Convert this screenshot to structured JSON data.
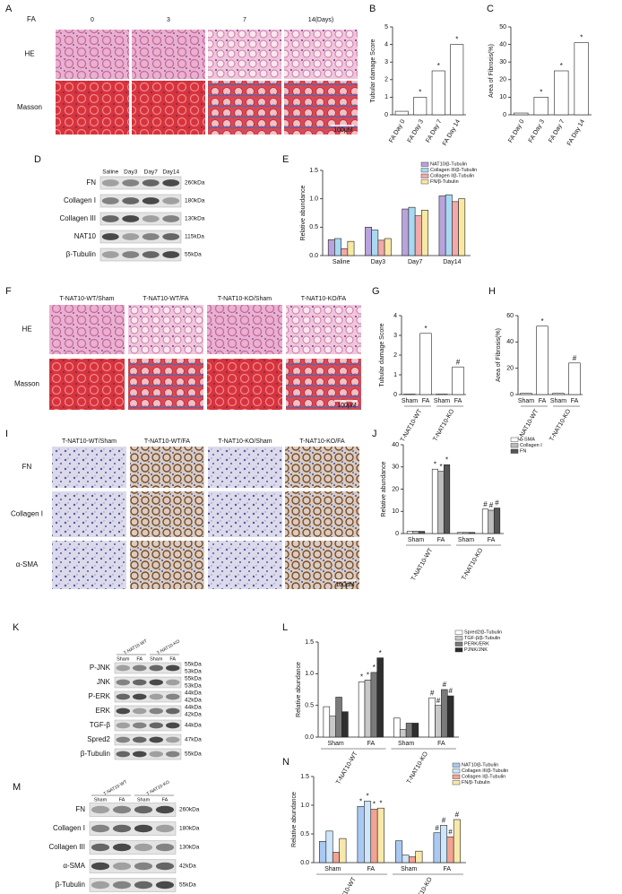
{
  "figure": {
    "panels": [
      "A",
      "B",
      "C",
      "D",
      "E",
      "F",
      "G",
      "H",
      "I",
      "J",
      "K",
      "L",
      "M",
      "N"
    ],
    "panel_A": {
      "group_label": "FA",
      "columns": [
        "0",
        "3",
        "7",
        "14(Days)"
      ],
      "rows": [
        "HE",
        "Masson"
      ],
      "scale": "100μM"
    },
    "panel_D": {
      "lanes": [
        "Saline",
        "Day3",
        "Day7",
        "Day14"
      ],
      "rows": [
        {
          "name": "FN",
          "sizes": [
            "260kDa"
          ]
        },
        {
          "name": "Collagen I",
          "sizes": [
            "180kDa"
          ]
        },
        {
          "name": "Collagen III",
          "sizes": [
            "130kDa"
          ]
        },
        {
          "name": "NAT10",
          "sizes": [
            "115kDa"
          ]
        },
        {
          "name": "β-Tubulin",
          "sizes": [
            "55kDa"
          ]
        }
      ]
    },
    "panel_F": {
      "columns": [
        "T-NAT10-WT/Sham",
        "T-NAT10-WT/FA",
        "T-NAT10-KO/Sham",
        "T-NAT10-KO/FA"
      ],
      "rows": [
        "HE",
        "Masson"
      ],
      "scale": "100μM"
    },
    "panel_I": {
      "columns": [
        "T-NAT10-WT/Sham",
        "T-NAT10-WT/FA",
        "T-NAT10-KO/Sham",
        "T-NAT10-KO/FA"
      ],
      "rows": [
        "FN",
        "Collagen I",
        "α-SMA"
      ],
      "scale": "100μM"
    },
    "panel_K": {
      "groups": [
        "T-NAT10-WT",
        "T-NAT10-KO"
      ],
      "lanes": [
        "Sham",
        "FA",
        "Sham",
        "FA"
      ],
      "rows": [
        {
          "name": "P-JNK",
          "sizes": [
            "55kDa",
            "53kDa"
          ]
        },
        {
          "name": "JNK",
          "sizes": [
            "55kDa",
            "53kDa"
          ]
        },
        {
          "name": "P-ERK",
          "sizes": [
            "44kDa",
            "42kDa"
          ]
        },
        {
          "name": "ERK",
          "sizes": [
            "44kDa",
            "42kDa"
          ]
        },
        {
          "name": "TGF-β",
          "sizes": [
            "44kDa"
          ]
        },
        {
          "name": "Spred2",
          "sizes": [
            "47kDa"
          ]
        },
        {
          "name": "β-Tubulin",
          "sizes": [
            "55kDa"
          ]
        }
      ]
    },
    "panel_M": {
      "groups": [
        "T-NAT10-WT",
        "T-NAT10-KO"
      ],
      "lanes": [
        "Sham",
        "FA",
        "Sham",
        "FA"
      ],
      "rows": [
        {
          "name": "FN",
          "sizes": [
            "260kDa"
          ]
        },
        {
          "name": "Collagen I",
          "sizes": [
            "180kDa"
          ]
        },
        {
          "name": "Collagen III",
          "sizes": [
            "130kDa"
          ]
        },
        {
          "name": "α-SMA",
          "sizes": [
            "42kDa"
          ]
        },
        {
          "name": "β-Tubulin",
          "sizes": [
            "55kDa"
          ]
        }
      ]
    }
  },
  "chart_data": [
    {
      "type": "bar",
      "ylabel": "Tubular damage Score",
      "categories": [
        "FA Day 0",
        "FA Day 3",
        "FA Day 7",
        "FA Day 14"
      ],
      "values": [
        0.2,
        1.0,
        2.5,
        4.0
      ],
      "annotations": [
        null,
        "*",
        "*",
        "*"
      ],
      "color": "#ffffff",
      "ylim": [
        0,
        5
      ],
      "yticks": [
        0,
        1,
        2,
        3,
        4,
        5
      ]
    },
    {
      "type": "bar",
      "ylabel": "Area of Fibrosis(%)",
      "categories": [
        "FA Day 0",
        "FA Day 3",
        "FA Day 7",
        "FA Day 14"
      ],
      "values": [
        1,
        10,
        25,
        41
      ],
      "annotations": [
        null,
        "*",
        "*",
        "*"
      ],
      "color": "#ffffff",
      "ylim": [
        0,
        50
      ],
      "yticks": [
        0,
        10,
        20,
        30,
        40,
        50
      ]
    },
    {
      "type": "bar",
      "ylabel": "Relative abundance",
      "categories": [
        "Saline",
        "Day3",
        "Day7",
        "Day14"
      ],
      "series": [
        {
          "name": "NAT10/β-Tubulin",
          "color": "#b9a3dc",
          "values": [
            0.28,
            0.5,
            0.82,
            1.05
          ]
        },
        {
          "name": "Collagen III/β-Tubulin",
          "color": "#a9d9f2",
          "values": [
            0.3,
            0.45,
            0.85,
            1.07
          ]
        },
        {
          "name": "Collagen I/β-Tubulin",
          "color": "#f2a9a9",
          "values": [
            0.12,
            0.27,
            0.7,
            0.95
          ]
        },
        {
          "name": "FN/β-Tubulin",
          "color": "#f8e8a2",
          "values": [
            0.25,
            0.3,
            0.8,
            1.0
          ]
        }
      ],
      "ylim": [
        0,
        1.5
      ],
      "yticks": [
        {
          "value": 0,
          "label": "0.0"
        },
        {
          "value": 0.5,
          "label": "0.5"
        },
        {
          "value": 1,
          "label": "1.0"
        },
        {
          "value": 1.5,
          "label": "1.5"
        }
      ]
    },
    {
      "type": "bar",
      "ylabel": "Tubular damage Score",
      "categories": [
        "Sham",
        "FA",
        "Sham",
        "FA"
      ],
      "groups": [
        "T-NAT10-WT",
        "T-NAT10-KO"
      ],
      "values": [
        0.02,
        3.1,
        0.02,
        1.4
      ],
      "annotations": [
        null,
        "*",
        null,
        "#"
      ],
      "color": "#ffffff",
      "ylim": [
        0,
        4
      ],
      "yticks": [
        0,
        1,
        2,
        3,
        4
      ]
    },
    {
      "type": "bar",
      "ylabel": "Area of Fibrosis(%)",
      "categories": [
        "Sham",
        "FA",
        "Sham",
        "FA"
      ],
      "groups": [
        "T-NAT10-WT",
        "T-NAT10-KO"
      ],
      "values": [
        1,
        52,
        1,
        24
      ],
      "annotations": [
        null,
        "*",
        null,
        "#"
      ],
      "color": "#ffffff",
      "ylim": [
        0,
        60
      ],
      "yticks": [
        0,
        20,
        40,
        60
      ]
    },
    {
      "type": "bar",
      "ylabel": "Relative abundance",
      "categories": [
        "Sham",
        "FA",
        "Sham",
        "FA"
      ],
      "groups": [
        "T-NAT10-WT",
        "T-NAT10-KO"
      ],
      "series": [
        {
          "name": "α-SMA",
          "color": "#ffffff",
          "values": [
            1,
            29,
            0.5,
            11
          ],
          "annotations": [
            null,
            "*",
            null,
            "#"
          ]
        },
        {
          "name": "Collagen I",
          "color": "#bdbdbd",
          "values": [
            1,
            28,
            0.5,
            10.5
          ],
          "annotations": [
            null,
            "*",
            null,
            "#"
          ]
        },
        {
          "name": "FN",
          "color": "#555555",
          "values": [
            1,
            31,
            0.5,
            11.5
          ],
          "annotations": [
            null,
            "*",
            null,
            "#"
          ]
        }
      ],
      "ylim": [
        0,
        40
      ],
      "yticks": [
        0,
        10,
        20,
        30,
        40
      ]
    },
    {
      "type": "bar",
      "ylabel": "Relative abundance",
      "categories": [
        "Sham",
        "FA",
        "Sham",
        "FA"
      ],
      "groups": [
        "T-NAT10-WT",
        "T-NAT10-KO"
      ],
      "series": [
        {
          "name": "Spred2/β-Tubulin",
          "color": "#ffffff",
          "values": [
            0.48,
            0.87,
            0.3,
            0.62
          ],
          "annotations": [
            null,
            "*",
            null,
            "#"
          ]
        },
        {
          "name": "TGF-β/β-Tubulin",
          "color": "#c8c8c8",
          "values": [
            0.33,
            0.9,
            0.12,
            0.5
          ],
          "annotations": [
            null,
            "*",
            null,
            "#"
          ]
        },
        {
          "name": "PERK/ERK",
          "color": "#7a7a7a",
          "values": [
            0.63,
            1.02,
            0.22,
            0.75
          ],
          "annotations": [
            null,
            "*",
            null,
            "#"
          ]
        },
        {
          "name": "PJNK/JNK",
          "color": "#2e2e2e",
          "values": [
            0.4,
            1.25,
            0.22,
            0.65
          ],
          "annotations": [
            null,
            "*",
            null,
            "#"
          ]
        }
      ],
      "ylim": [
        0,
        1.5
      ],
      "yticks": [
        {
          "value": 0,
          "label": "0.0"
        },
        {
          "value": 0.5,
          "label": "0.5"
        },
        {
          "value": 1,
          "label": "1.0"
        },
        {
          "value": 1.5,
          "label": "1.5"
        }
      ]
    },
    {
      "type": "bar",
      "ylabel": "Relative abundance",
      "categories": [
        "Sham",
        "FA",
        "Sham",
        "FA"
      ],
      "groups": [
        "T-NAT10-WT",
        "T-NAT10-KO"
      ],
      "series": [
        {
          "name": "NAT10/β-Tubulin",
          "color": "#a9c9f2",
          "values": [
            0.37,
            0.98,
            0.38,
            0.52
          ],
          "annotations": [
            null,
            "*",
            null,
            "#"
          ]
        },
        {
          "name": "Collagen III/β-Tubulin",
          "color": "#cfe5f9",
          "values": [
            0.55,
            1.07,
            0.13,
            0.65
          ],
          "annotations": [
            null,
            "*",
            null,
            "#"
          ]
        },
        {
          "name": "Collagen I/β-Tubulin",
          "color": "#f2a392",
          "values": [
            0.18,
            0.93,
            0.1,
            0.45
          ],
          "annotations": [
            null,
            "*",
            null,
            "#"
          ]
        },
        {
          "name": "FN/β-Tubulin",
          "color": "#f8e9aa",
          "values": [
            0.42,
            0.95,
            0.2,
            0.75
          ],
          "annotations": [
            null,
            "*",
            null,
            "#"
          ]
        }
      ],
      "ylim": [
        0,
        1.5
      ],
      "yticks": [
        {
          "value": 0,
          "label": "0.0"
        },
        {
          "value": 0.5,
          "label": "0.5"
        },
        {
          "value": 1,
          "label": "1.0"
        },
        {
          "value": 1.5,
          "label": "1.5"
        }
      ]
    }
  ]
}
